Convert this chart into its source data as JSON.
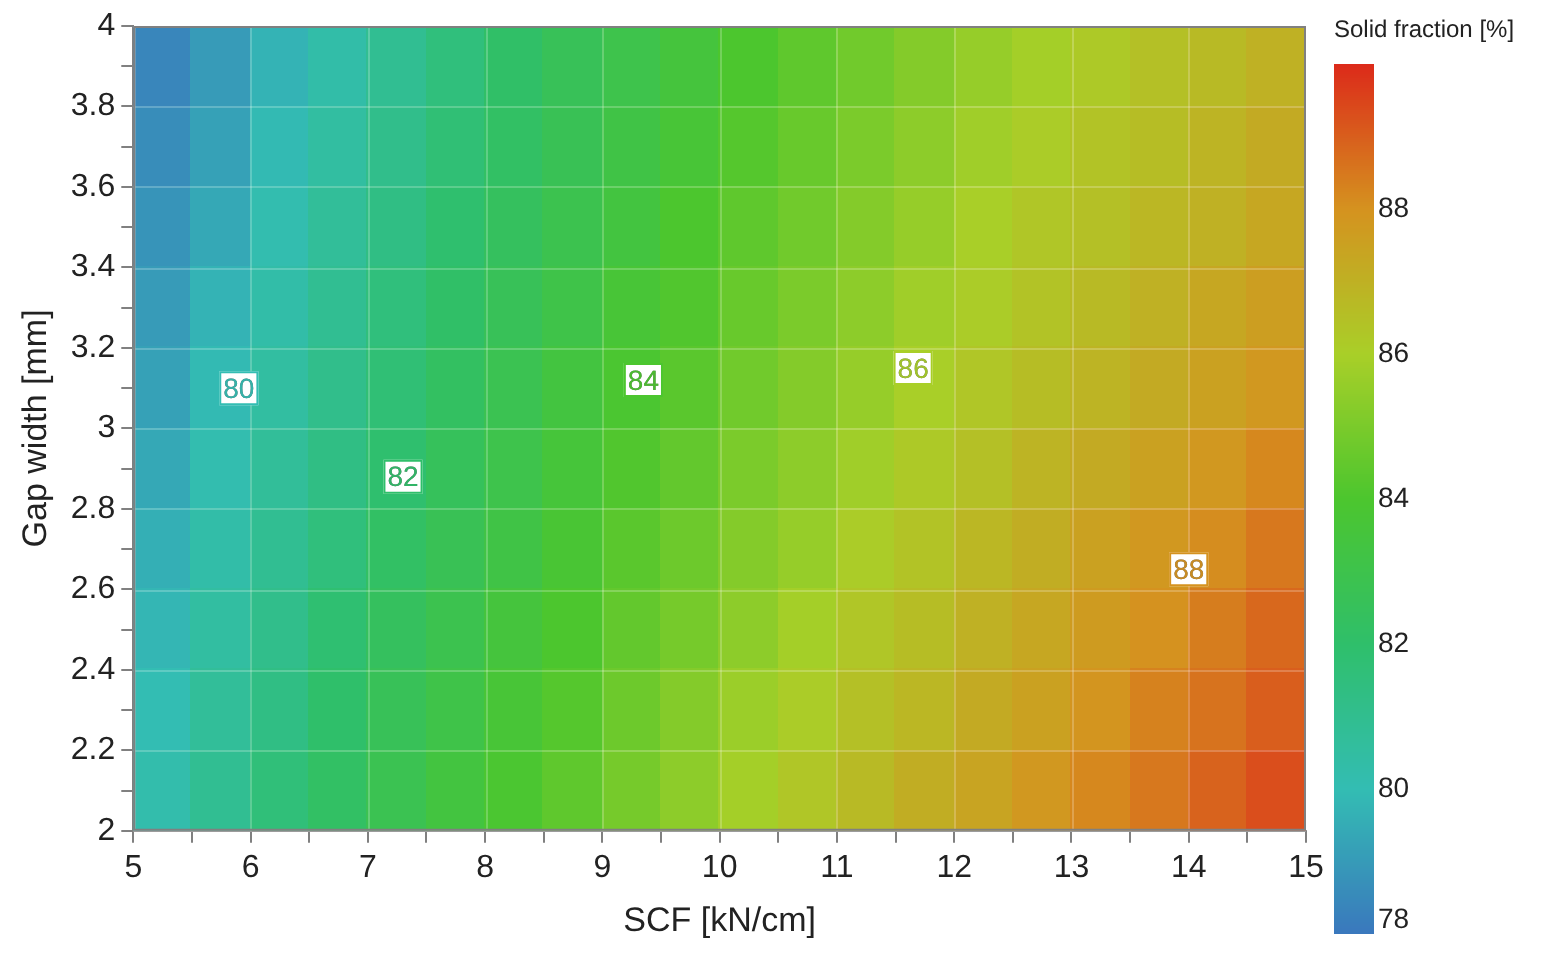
{
  "chart_data": {
    "type": "heatmap",
    "xlabel": "SCF [kN/cm]",
    "ylabel": "Gap width [mm]",
    "clabel": "Solid fraction [%]",
    "xlim": [
      5,
      15
    ],
    "ylim": [
      2,
      4
    ],
    "xticks": [
      5,
      {
        "value": 5.5,
        "label": null
      },
      6,
      {
        "value": 6.5,
        "label": null
      },
      7,
      {
        "value": 7.5,
        "label": null
      },
      8,
      {
        "value": 8.5,
        "label": null
      },
      9,
      {
        "value": 9.5,
        "label": null
      },
      10,
      {
        "value": 10.5,
        "label": null
      },
      11,
      {
        "value": 11.5,
        "label": null
      },
      12,
      {
        "value": 12.5,
        "label": null
      },
      13,
      {
        "value": 13.5,
        "label": null
      },
      14,
      {
        "value": 14.5,
        "label": null
      },
      15
    ],
    "yticks": [
      2,
      {
        "value": 2.1,
        "label": null
      },
      2.2,
      {
        "value": 2.3,
        "label": null
      },
      2.4,
      {
        "value": 2.5,
        "label": null
      },
      2.6,
      {
        "value": 2.7,
        "label": null
      },
      2.8,
      {
        "value": 2.9,
        "label": null
      },
      3,
      {
        "value": 3.1,
        "label": null
      },
      3.2,
      {
        "value": 3.3,
        "label": null
      },
      3.4,
      {
        "value": 3.5,
        "label": null
      },
      3.6,
      {
        "value": 3.7,
        "label": null
      },
      3.8,
      {
        "value": 3.9,
        "label": null
      },
      4
    ],
    "clim": [
      78,
      90
    ],
    "cticks": [
      78,
      80,
      82,
      84,
      86,
      88
    ],
    "colors": [
      "#3a78bd",
      "#33bdb3",
      "#2fbf6a",
      "#4cc62e",
      "#a9cf28",
      "#d5921f",
      "#dc2a1a"
    ],
    "grid": true,
    "cells": [
      [
        78.4,
        79.0,
        79.7,
        80.3,
        80.9,
        81.5,
        82.1,
        82.6,
        83.0,
        83.5,
        84.0,
        84.4,
        84.8,
        85.2,
        85.6,
        85.9,
        86.2,
        86.5,
        86.7,
        87.0
      ],
      [
        78.6,
        79.2,
        79.9,
        80.5,
        81.1,
        81.7,
        82.2,
        82.7,
        83.2,
        83.7,
        84.2,
        84.6,
        85.0,
        85.4,
        85.8,
        86.1,
        86.4,
        86.6,
        86.9,
        87.2
      ],
      [
        78.8,
        79.4,
        80.1,
        80.7,
        81.3,
        81.9,
        82.4,
        82.9,
        83.4,
        84.0,
        84.4,
        84.8,
        85.2,
        85.6,
        86.0,
        86.3,
        86.5,
        86.8,
        87.0,
        87.3
      ],
      [
        79.0,
        79.7,
        80.3,
        80.9,
        81.5,
        82.1,
        82.6,
        83.1,
        83.7,
        84.1,
        84.6,
        85.0,
        85.4,
        85.8,
        86.1,
        86.4,
        86.7,
        87.0,
        87.3,
        87.6
      ],
      [
        79.2,
        79.9,
        80.5,
        81.1,
        81.7,
        82.3,
        82.8,
        83.4,
        83.9,
        84.3,
        84.8,
        85.2,
        85.6,
        86.0,
        86.3,
        86.6,
        86.9,
        87.2,
        87.5,
        87.8
      ],
      [
        79.4,
        80.1,
        80.7,
        81.3,
        81.9,
        82.5,
        83.0,
        83.6,
        84.1,
        84.5,
        85.0,
        85.4,
        85.8,
        86.2,
        86.5,
        86.9,
        87.2,
        87.5,
        87.8,
        88.2
      ],
      [
        79.6,
        80.3,
        80.9,
        81.5,
        82.2,
        82.7,
        83.2,
        83.8,
        84.3,
        84.7,
        85.2,
        85.6,
        86.1,
        86.4,
        86.8,
        87.1,
        87.5,
        87.8,
        88.1,
        88.5
      ],
      [
        79.8,
        80.5,
        81.1,
        81.8,
        82.4,
        82.9,
        83.5,
        84.0,
        84.5,
        84.9,
        85.4,
        85.9,
        86.3,
        86.6,
        87.0,
        87.3,
        87.7,
        88.0,
        88.4,
        88.8
      ],
      [
        80.0,
        80.7,
        81.3,
        82.0,
        82.6,
        83.1,
        83.7,
        84.2,
        84.7,
        85.2,
        85.7,
        86.1,
        86.5,
        86.8,
        87.2,
        87.5,
        87.9,
        88.3,
        88.6,
        89.0
      ],
      [
        80.2,
        80.9,
        81.6,
        82.2,
        82.8,
        83.4,
        83.9,
        84.4,
        84.9,
        85.4,
        85.9,
        86.3,
        86.7,
        87.1,
        87.4,
        87.8,
        88.2,
        88.5,
        88.9,
        89.3
      ]
    ],
    "annotations": [
      {
        "text": "80",
        "x": 5.9,
        "y": 3.1
      },
      {
        "text": "82",
        "x": 7.3,
        "y": 2.88
      },
      {
        "text": "84",
        "x": 9.35,
        "y": 3.12
      },
      {
        "text": "86",
        "x": 11.65,
        "y": 3.15
      },
      {
        "text": "88",
        "x": 14.0,
        "y": 2.65
      }
    ]
  }
}
